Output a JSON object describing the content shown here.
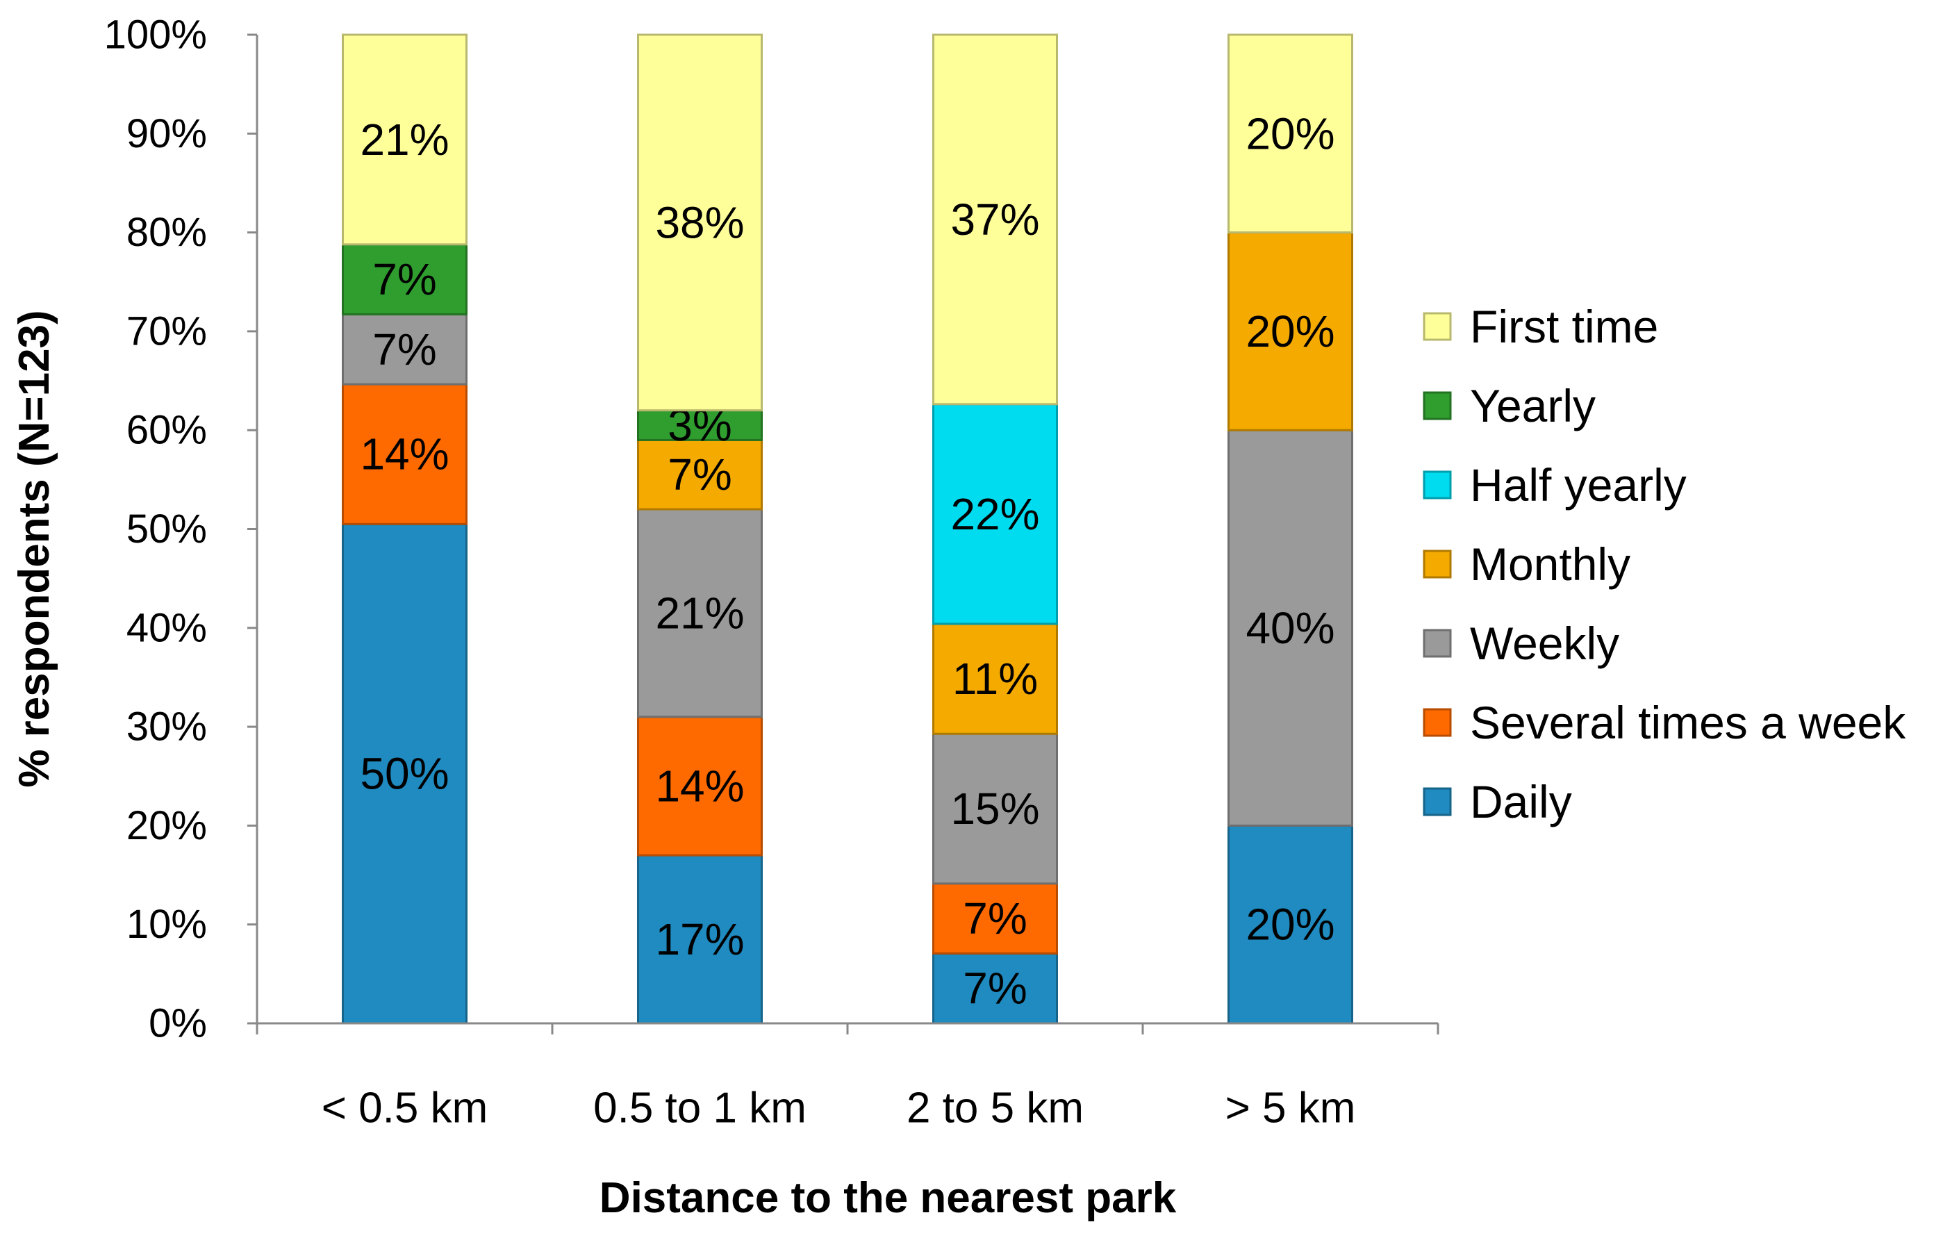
{
  "chart_data": {
    "type": "bar",
    "stacked": true,
    "categories": [
      "< 0.5 km",
      "0.5 to 1 km",
      "2 to 5 km",
      "> 5 km"
    ],
    "series": [
      {
        "name": "Daily",
        "color": "#1f8bc0",
        "values": [
          50,
          17,
          7,
          20
        ],
        "labels": [
          "50%",
          "17%",
          "7%",
          "20%"
        ]
      },
      {
        "name": "Several times a week",
        "color": "#ff6a00",
        "values": [
          14,
          14,
          7,
          0
        ],
        "labels": [
          "14%",
          "14%",
          "7%",
          ""
        ]
      },
      {
        "name": "Weekly",
        "color": "#9a9a9a",
        "values": [
          7,
          21,
          15,
          40
        ],
        "labels": [
          "7%",
          "21%",
          "15%",
          "40%"
        ]
      },
      {
        "name": "Monthly",
        "color": "#f5aa00",
        "values": [
          0,
          7,
          11,
          20
        ],
        "labels": [
          "",
          "7%",
          "11%",
          "20%"
        ]
      },
      {
        "name": "Half yearly",
        "color": "#00dcef",
        "values": [
          0,
          0,
          22,
          0
        ],
        "labels": [
          "",
          "",
          "22%",
          ""
        ]
      },
      {
        "name": "Yearly",
        "color": "#2f9e2f",
        "values": [
          7,
          3,
          0,
          0
        ],
        "labels": [
          "7%",
          "3%",
          "",
          ""
        ]
      },
      {
        "name": "First time",
        "color": "#ffff99",
        "values": [
          21,
          38,
          37,
          20
        ],
        "labels": [
          "21%",
          "38%",
          "37%",
          "20%"
        ]
      }
    ],
    "legend_order": [
      "First time",
      "Yearly",
      "Half yearly",
      "Monthly",
      "Weekly",
      "Several times a week",
      "Daily"
    ],
    "yticks": [
      "0%",
      "10%",
      "20%",
      "30%",
      "40%",
      "50%",
      "60%",
      "70%",
      "80%",
      "90%",
      "100%"
    ],
    "ylim": [
      0,
      100
    ],
    "ylabel": "% respondents (N=123)",
    "xlabel": "Distance to the nearest park",
    "title": "",
    "legend_position": "right",
    "grid": false
  }
}
